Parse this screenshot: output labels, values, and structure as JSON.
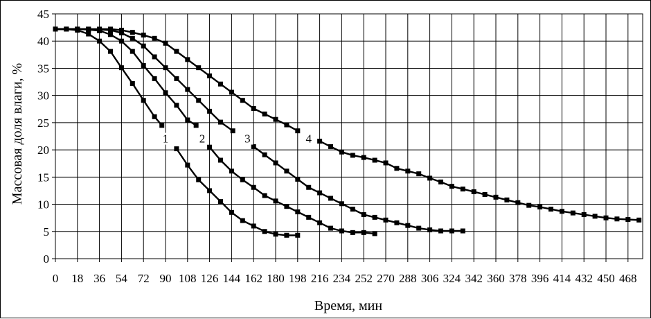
{
  "chart_data": {
    "type": "line",
    "xlabel": "Время, мин",
    "ylabel": "Массовая доля влаги, %",
    "xlim": [
      0,
      480
    ],
    "ylim": [
      0,
      45
    ],
    "xticks": [
      0,
      18,
      36,
      54,
      72,
      90,
      108,
      126,
      144,
      162,
      180,
      198,
      216,
      234,
      252,
      270,
      288,
      306,
      324,
      342,
      360,
      378,
      396,
      414,
      432,
      450,
      468
    ],
    "yticks": [
      0,
      5,
      10,
      15,
      20,
      25,
      30,
      35,
      40,
      45
    ],
    "grid": true,
    "marker": "square",
    "series_color": "#000000",
    "series": [
      {
        "name": "1",
        "segments": [
          [
            [
              0,
              42.2
            ],
            [
              9,
              42.2
            ],
            [
              18,
              42.0
            ],
            [
              27,
              41.3
            ],
            [
              36,
              40.0
            ],
            [
              45,
              38.1
            ],
            [
              54,
              35.1
            ],
            [
              63,
              32.2
            ],
            [
              72,
              29.1
            ],
            [
              81,
              26.1
            ],
            [
              87,
              24.5
            ]
          ],
          [
            [
              99,
              20.2
            ],
            [
              108,
              17.2
            ],
            [
              117,
              14.5
            ],
            [
              126,
              12.5
            ],
            [
              135,
              10.5
            ],
            [
              144,
              8.5
            ],
            [
              153,
              7.0
            ],
            [
              162,
              6.0
            ],
            [
              171,
              5.0
            ],
            [
              180,
              4.5
            ],
            [
              189,
              4.3
            ],
            [
              198,
              4.3
            ]
          ]
        ]
      },
      {
        "name": "2",
        "segments": [
          [
            [
              0,
              42.2
            ],
            [
              9,
              42.2
            ],
            [
              18,
              42.2
            ],
            [
              27,
              42.1
            ],
            [
              36,
              41.9
            ],
            [
              45,
              41.2
            ],
            [
              54,
              40.0
            ],
            [
              63,
              38.1
            ],
            [
              72,
              35.5
            ],
            [
              81,
              33.1
            ],
            [
              90,
              30.5
            ],
            [
              99,
              28.2
            ],
            [
              108,
              25.5
            ],
            [
              115,
              24.5
            ]
          ],
          [
            [
              126,
              20.5
            ],
            [
              135,
              18.1
            ],
            [
              144,
              16.1
            ],
            [
              153,
              14.5
            ],
            [
              162,
              13.1
            ],
            [
              171,
              11.6
            ],
            [
              180,
              10.6
            ],
            [
              189,
              9.6
            ],
            [
              198,
              8.6
            ],
            [
              207,
              7.6
            ],
            [
              216,
              6.6
            ],
            [
              225,
              5.6
            ],
            [
              234,
              5.1
            ],
            [
              243,
              4.8
            ],
            [
              252,
              4.8
            ],
            [
              261,
              4.6
            ]
          ]
        ]
      },
      {
        "name": "3",
        "segments": [
          [
            [
              0,
              42.2
            ],
            [
              9,
              42.2
            ],
            [
              18,
              42.2
            ],
            [
              27,
              42.2
            ],
            [
              36,
              42.1
            ],
            [
              45,
              42.0
            ],
            [
              54,
              41.5
            ],
            [
              63,
              40.5
            ],
            [
              72,
              39.1
            ],
            [
              81,
              37.1
            ],
            [
              90,
              35.1
            ],
            [
              99,
              33.1
            ],
            [
              108,
              31.1
            ],
            [
              117,
              29.1
            ],
            [
              126,
              27.1
            ],
            [
              135,
              25.1
            ],
            [
              145,
              23.5
            ]
          ],
          [
            [
              162,
              20.6
            ],
            [
              171,
              19.1
            ],
            [
              180,
              17.6
            ],
            [
              189,
              16.1
            ],
            [
              198,
              14.6
            ],
            [
              207,
              13.1
            ],
            [
              216,
              12.1
            ],
            [
              225,
              11.1
            ],
            [
              234,
              10.1
            ],
            [
              243,
              9.1
            ],
            [
              252,
              8.1
            ],
            [
              261,
              7.6
            ],
            [
              270,
              7.1
            ],
            [
              279,
              6.6
            ],
            [
              288,
              6.1
            ],
            [
              297,
              5.6
            ],
            [
              306,
              5.3
            ],
            [
              315,
              5.1
            ],
            [
              324,
              5.1
            ],
            [
              333,
              5.1
            ]
          ]
        ]
      },
      {
        "name": "4",
        "segments": [
          [
            [
              0,
              42.2
            ],
            [
              9,
              42.2
            ],
            [
              18,
              42.2
            ],
            [
              27,
              42.2
            ],
            [
              36,
              42.2
            ],
            [
              45,
              42.2
            ],
            [
              54,
              42.0
            ],
            [
              63,
              41.6
            ],
            [
              72,
              41.1
            ],
            [
              81,
              40.5
            ],
            [
              90,
              39.6
            ],
            [
              99,
              38.1
            ],
            [
              108,
              36.6
            ],
            [
              117,
              35.1
            ],
            [
              126,
              33.6
            ],
            [
              135,
              32.1
            ],
            [
              144,
              30.6
            ],
            [
              153,
              29.1
            ],
            [
              162,
              27.6
            ],
            [
              171,
              26.6
            ],
            [
              180,
              25.6
            ],
            [
              189,
              24.6
            ],
            [
              198,
              23.5
            ]
          ],
          [
            [
              216,
              21.6
            ],
            [
              225,
              20.6
            ],
            [
              234,
              19.6
            ],
            [
              243,
              19.0
            ],
            [
              252,
              18.6
            ],
            [
              261,
              18.1
            ],
            [
              270,
              17.6
            ],
            [
              279,
              16.6
            ],
            [
              288,
              16.1
            ],
            [
              297,
              15.6
            ],
            [
              306,
              14.8
            ],
            [
              315,
              14.1
            ],
            [
              324,
              13.3
            ],
            [
              333,
              12.8
            ],
            [
              342,
              12.3
            ],
            [
              351,
              11.8
            ],
            [
              360,
              11.3
            ],
            [
              369,
              10.8
            ],
            [
              378,
              10.3
            ],
            [
              387,
              9.8
            ],
            [
              396,
              9.5
            ],
            [
              405,
              9.1
            ],
            [
              414,
              8.7
            ],
            [
              423,
              8.4
            ],
            [
              432,
              8.1
            ],
            [
              441,
              7.8
            ],
            [
              450,
              7.5
            ],
            [
              459,
              7.3
            ],
            [
              468,
              7.2
            ],
            [
              477,
              7.1
            ]
          ]
        ]
      }
    ],
    "series_labels": [
      {
        "text": "1",
        "x": 90,
        "y": 21.6
      },
      {
        "text": "2",
        "x": 120,
        "y": 21.6
      },
      {
        "text": "3",
        "x": 157,
        "y": 21.6
      },
      {
        "text": "4",
        "x": 207,
        "y": 21.6
      }
    ]
  }
}
